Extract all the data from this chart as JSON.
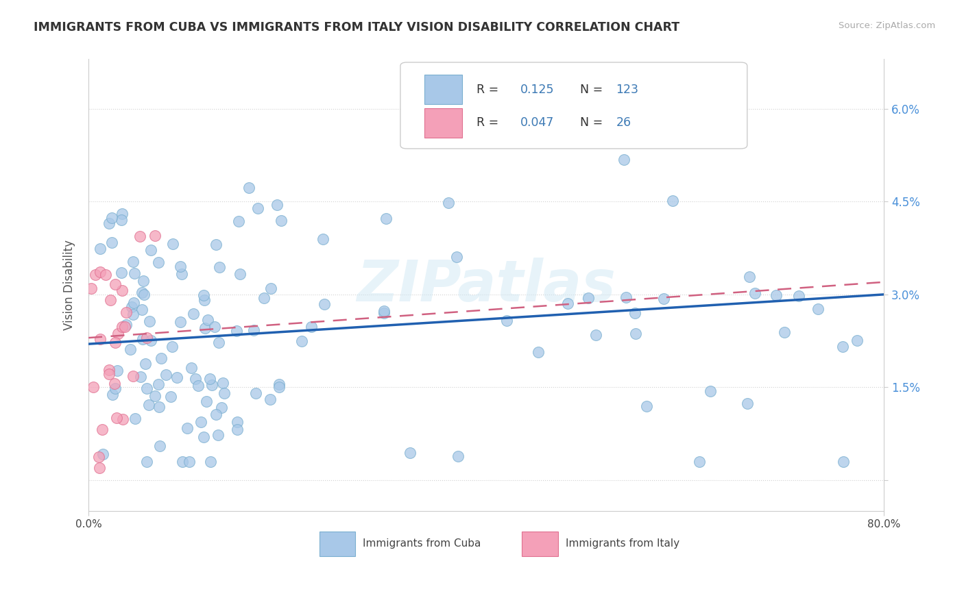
{
  "title": "IMMIGRANTS FROM CUBA VS IMMIGRANTS FROM ITALY VISION DISABILITY CORRELATION CHART",
  "source": "Source: ZipAtlas.com",
  "ylabel": "Vision Disability",
  "xlim": [
    0.0,
    0.8
  ],
  "ylim": [
    -0.005,
    0.068
  ],
  "ytick_vals": [
    0.0,
    0.015,
    0.03,
    0.045,
    0.06
  ],
  "ytick_labels": [
    "",
    "1.5%",
    "3.0%",
    "4.5%",
    "6.0%"
  ],
  "xtick_vals": [
    0.0,
    0.8
  ],
  "xtick_labels": [
    "0.0%",
    "80.0%"
  ],
  "cuba_r": "0.125",
  "cuba_n": "123",
  "italy_r": "0.047",
  "italy_n": "26",
  "cuba_scatter_color": "#a8c8e8",
  "cuba_edge_color": "#7aafd0",
  "italy_scatter_color": "#f4a0b8",
  "italy_edge_color": "#e07090",
  "cuba_line_color": "#2060b0",
  "italy_line_color": "#d06080",
  "watermark_text": "ZIPatlas",
  "watermark_color": "#d0e8f4",
  "background_color": "#ffffff",
  "grid_color": "#cccccc",
  "legend_label_cuba": "Immigrants from Cuba",
  "legend_label_italy": "Immigrants from Italy",
  "right_tick_color": "#4a90d9",
  "title_color": "#333333",
  "source_color": "#aaaaaa",
  "ylabel_color": "#555555",
  "legend_r_color": "#333333",
  "legend_val_color": "#3d7ab5"
}
